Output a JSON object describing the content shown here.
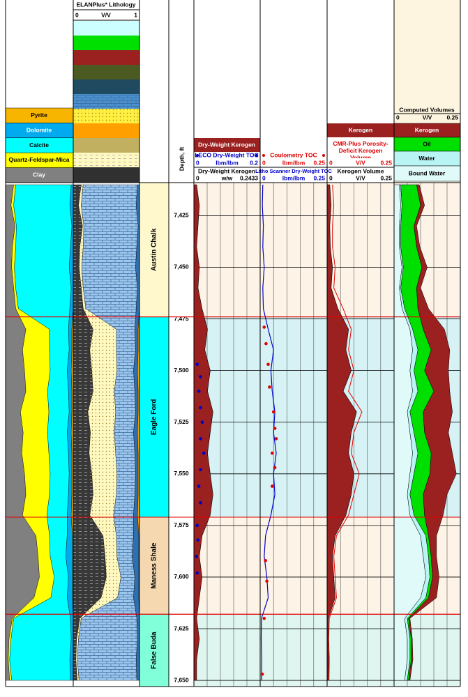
{
  "lithology_header": {
    "title": "ELANPlus* Lithology",
    "min": 0,
    "unit": "V/V",
    "max": 1
  },
  "mineral_legend": [
    {
      "label": "Pyrite",
      "color": "#f7b500",
      "lith_color": "#ffa000",
      "pattern": "none",
      "values": [
        0,
        0,
        0,
        0,
        0,
        0,
        0,
        0.02,
        0.02,
        0.03,
        0.02,
        0.02,
        0.03,
        0.02,
        0.02,
        0.02,
        0.03,
        0.01,
        0.01,
        0.01,
        0.01,
        0,
        0,
        0,
        0
      ]
    },
    {
      "label": "Dolomite",
      "color": "#00aaee",
      "lith_color": "#2f6fb0",
      "pattern": "none",
      "values": [
        0.03,
        0.05,
        0.02,
        0.04,
        0.06,
        0.03,
        0.05,
        0.05,
        0.04,
        0.06,
        0.05,
        0.04,
        0.06,
        0.05,
        0.04,
        0.05,
        0.06,
        0.08,
        0.1,
        0.06,
        0.08,
        0.04,
        0.03,
        0.05,
        0.04
      ]
    },
    {
      "label": "Calcite",
      "color": "#00ffff",
      "lith_color": "#9cc6ee",
      "pattern": "brick",
      "values": [
        0.82,
        0.83,
        0.82,
        0.81,
        0.81,
        0.82,
        0.76,
        0.28,
        0.29,
        0.25,
        0.31,
        0.3,
        0.29,
        0.29,
        0.28,
        0.28,
        0.3,
        0.26,
        0.23,
        0.21,
        0.24,
        0.84,
        0.89,
        0.89,
        0.87
      ]
    },
    {
      "label": "Quartz-Feldspar-Mica",
      "color": "#ffff00",
      "lith_color": "#fff8c0",
      "pattern": "dot",
      "values": [
        0.03,
        0.04,
        0.02,
        0.05,
        0.04,
        0.03,
        0.04,
        0.35,
        0.4,
        0.38,
        0.32,
        0.42,
        0.36,
        0.4,
        0.38,
        0.35,
        0.36,
        0.2,
        0.18,
        0.22,
        0.25,
        0.02,
        0.03,
        0.02,
        0.03
      ]
    },
    {
      "label": "Clay",
      "color": "#808080",
      "lith_color": "#383838",
      "pattern": "dash",
      "values": [
        0.12,
        0.08,
        0.14,
        0.1,
        0.09,
        0.12,
        0.15,
        0.3,
        0.25,
        0.28,
        0.3,
        0.22,
        0.26,
        0.24,
        0.28,
        0.3,
        0.25,
        0.45,
        0.48,
        0.5,
        0.42,
        0.1,
        0.05,
        0.04,
        0.06
      ]
    }
  ],
  "depth": {
    "label": "Depth, ft",
    "ylim": [
      7409,
      7653
    ],
    "yticks": [
      {
        "value": 7425,
        "label": "7,425"
      },
      {
        "value": 7450,
        "label": "7,450"
      },
      {
        "value": 7475,
        "label": "7,475"
      },
      {
        "value": 7500,
        "label": "7,500"
      },
      {
        "value": 7525,
        "label": "7,525"
      },
      {
        "value": 7550,
        "label": "7,550"
      },
      {
        "value": 7575,
        "label": "7,575"
      },
      {
        "value": 7600,
        "label": "7,600"
      },
      {
        "value": 7625,
        "label": "7,625"
      },
      {
        "value": 7650,
        "label": "7,650"
      }
    ],
    "samples": [
      7410,
      7420,
      7430,
      7440,
      7450,
      7460,
      7470,
      7480,
      7490,
      7500,
      7510,
      7520,
      7530,
      7540,
      7550,
      7560,
      7570,
      7580,
      7590,
      7600,
      7610,
      7620,
      7630,
      7640,
      7650
    ]
  },
  "zones": [
    {
      "name": "Austin Chalk",
      "top": 7409,
      "bottom": 7474,
      "color": "#fff8cc",
      "tint": "#fdf3e6"
    },
    {
      "name": "Eagle Ford",
      "top": 7474,
      "bottom": 7571,
      "color": "#00ffff",
      "tint": "#d6f2f4"
    },
    {
      "name": "Maness Shale",
      "top": 7571,
      "bottom": 7618,
      "color": "#f5d8b0",
      "tint": "#fdf3e6"
    },
    {
      "name": "False Buda",
      "top": 7618,
      "bottom": 7653,
      "color": "#80ffd8",
      "tint": "#dff5ef"
    }
  ],
  "kerogen_track": {
    "title": "Dry-Weight Kerogen",
    "points": {
      "name": "LECO Dry-Weight TOC",
      "color": "#0000cc",
      "min": 0,
      "unit": "lbm/lbm",
      "max": 0.2,
      "depths": [
        7497,
        7503,
        7510,
        7518,
        7525,
        7533,
        7540,
        7548,
        7556,
        7564,
        7575,
        7582,
        7590,
        7598
      ],
      "values": [
        0.01,
        0.02,
        0.015,
        0.02,
        0.025,
        0.02,
        0.03,
        0.02,
        0.015,
        0.02,
        0.01,
        0.012,
        0.008,
        0.01
      ]
    },
    "curve": {
      "name": "Dry-Weight Kerogen",
      "color": "#9b2020",
      "min": 0,
      "unit": "w/w",
      "max": 0.2433,
      "values": [
        0.01,
        0.02,
        0.015,
        0.01,
        0.02,
        0.015,
        0.03,
        0.05,
        0.04,
        0.06,
        0.05,
        0.07,
        0.06,
        0.05,
        0.06,
        0.07,
        0.06,
        0.03,
        0.02,
        0.03,
        0.02,
        0.01,
        0.02,
        0.01,
        0.01
      ]
    }
  },
  "toc_track": {
    "points": {
      "name": "Coulometry TOC",
      "color": "#e00000",
      "min": 0,
      "unit": "lbm/lbm",
      "max": 0.25,
      "depths": [
        7479,
        7487,
        7497,
        7508,
        7520,
        7528,
        7533,
        7540,
        7547,
        7556,
        7592,
        7602,
        7620,
        7647
      ],
      "values": [
        0.015,
        0.022,
        0.03,
        0.035,
        0.05,
        0.055,
        0.06,
        0.045,
        0.055,
        0.045,
        0.02,
        0.025,
        0.015,
        0.008
      ]
    },
    "curve": {
      "name": "Litho Scanner Dry-Weight TOC",
      "color": "#0000cc",
      "min": 0,
      "unit": "lbm/lbm",
      "max": 0.25,
      "values": [
        0.01,
        0.008,
        0.012,
        0.01,
        0.015,
        0.01,
        0.012,
        0.03,
        0.05,
        0.04,
        0.045,
        0.055,
        0.05,
        0.06,
        0.05,
        0.055,
        0.04,
        0.02,
        0.015,
        0.025,
        0.03,
        0.005,
        0.004,
        0.006,
        0.005
      ]
    }
  },
  "kerogen_volume_track": {
    "title": "Kerogen",
    "curve2": {
      "name": "CMR-Plus Porosity-Deficit Kerogen Volume",
      "color": "#e00000",
      "min": 0,
      "unit": "V/V",
      "max": 0.25,
      "values": [
        0.02,
        0.025,
        0.02,
        0.02,
        0.03,
        0.025,
        0.06,
        0.09,
        0.08,
        0.1,
        0.08,
        0.13,
        0.1,
        0.09,
        0.12,
        0.1,
        0.08,
        0.035,
        0.025,
        0.03,
        0.035,
        0.008,
        0.006,
        0.008,
        0.007
      ]
    },
    "curve": {
      "name": "Kerogen Volume",
      "color": "#9b2020",
      "min": 0,
      "unit": "V/V",
      "max": 0.25,
      "values": [
        0.01,
        0.015,
        0.01,
        0.012,
        0.02,
        0.015,
        0.04,
        0.08,
        0.07,
        0.09,
        0.06,
        0.11,
        0.09,
        0.08,
        0.1,
        0.09,
        0.07,
        0.03,
        0.02,
        0.025,
        0.03,
        0.005,
        0.004,
        0.006,
        0.005
      ]
    }
  },
  "volumes_track": {
    "title": "Computed Volumes",
    "min": 0,
    "unit": "V/V",
    "max": 0.25,
    "series": [
      {
        "name": "Kerogen",
        "color": "#9b2020",
        "values": [
          0.01,
          0.015,
          0.01,
          0.012,
          0.02,
          0.015,
          0.04,
          0.08,
          0.07,
          0.09,
          0.06,
          0.11,
          0.09,
          0.08,
          0.1,
          0.09,
          0.07,
          0.03,
          0.02,
          0.025,
          0.03,
          0.005,
          0.004,
          0.006,
          0.005
        ]
      },
      {
        "name": "Oil",
        "color": "#00e000",
        "values": [
          0.06,
          0.07,
          0.05,
          0.06,
          0.07,
          0.06,
          0.05,
          0.04,
          0.05,
          0.04,
          0.06,
          0.05,
          0.04,
          0.05,
          0.06,
          0.05,
          0.04,
          0.01,
          0.01,
          0.01,
          0.01,
          0.005,
          0.005,
          0.005,
          0.005
        ]
      },
      {
        "name": "Water",
        "color": "#b8f4f4",
        "values": [
          0.005,
          0.005,
          0.005,
          0.005,
          0.005,
          0.005,
          0.01,
          0.01,
          0.02,
          0.015,
          0.02,
          0.01,
          0.015,
          0.02,
          0.015,
          0.01,
          0.015,
          0.02,
          0.02,
          0.015,
          0.02,
          0.01,
          0.01,
          0.01,
          0.01
        ]
      },
      {
        "name": "Bound Water",
        "color": "#e0fafa",
        "values": [
          0.02,
          0.025,
          0.02,
          0.02,
          0.03,
          0.02,
          0.03,
          0.06,
          0.07,
          0.06,
          0.07,
          0.05,
          0.06,
          0.07,
          0.06,
          0.05,
          0.06,
          0.1,
          0.11,
          0.12,
          0.1,
          0.04,
          0.05,
          0.05,
          0.04
        ]
      }
    ]
  }
}
